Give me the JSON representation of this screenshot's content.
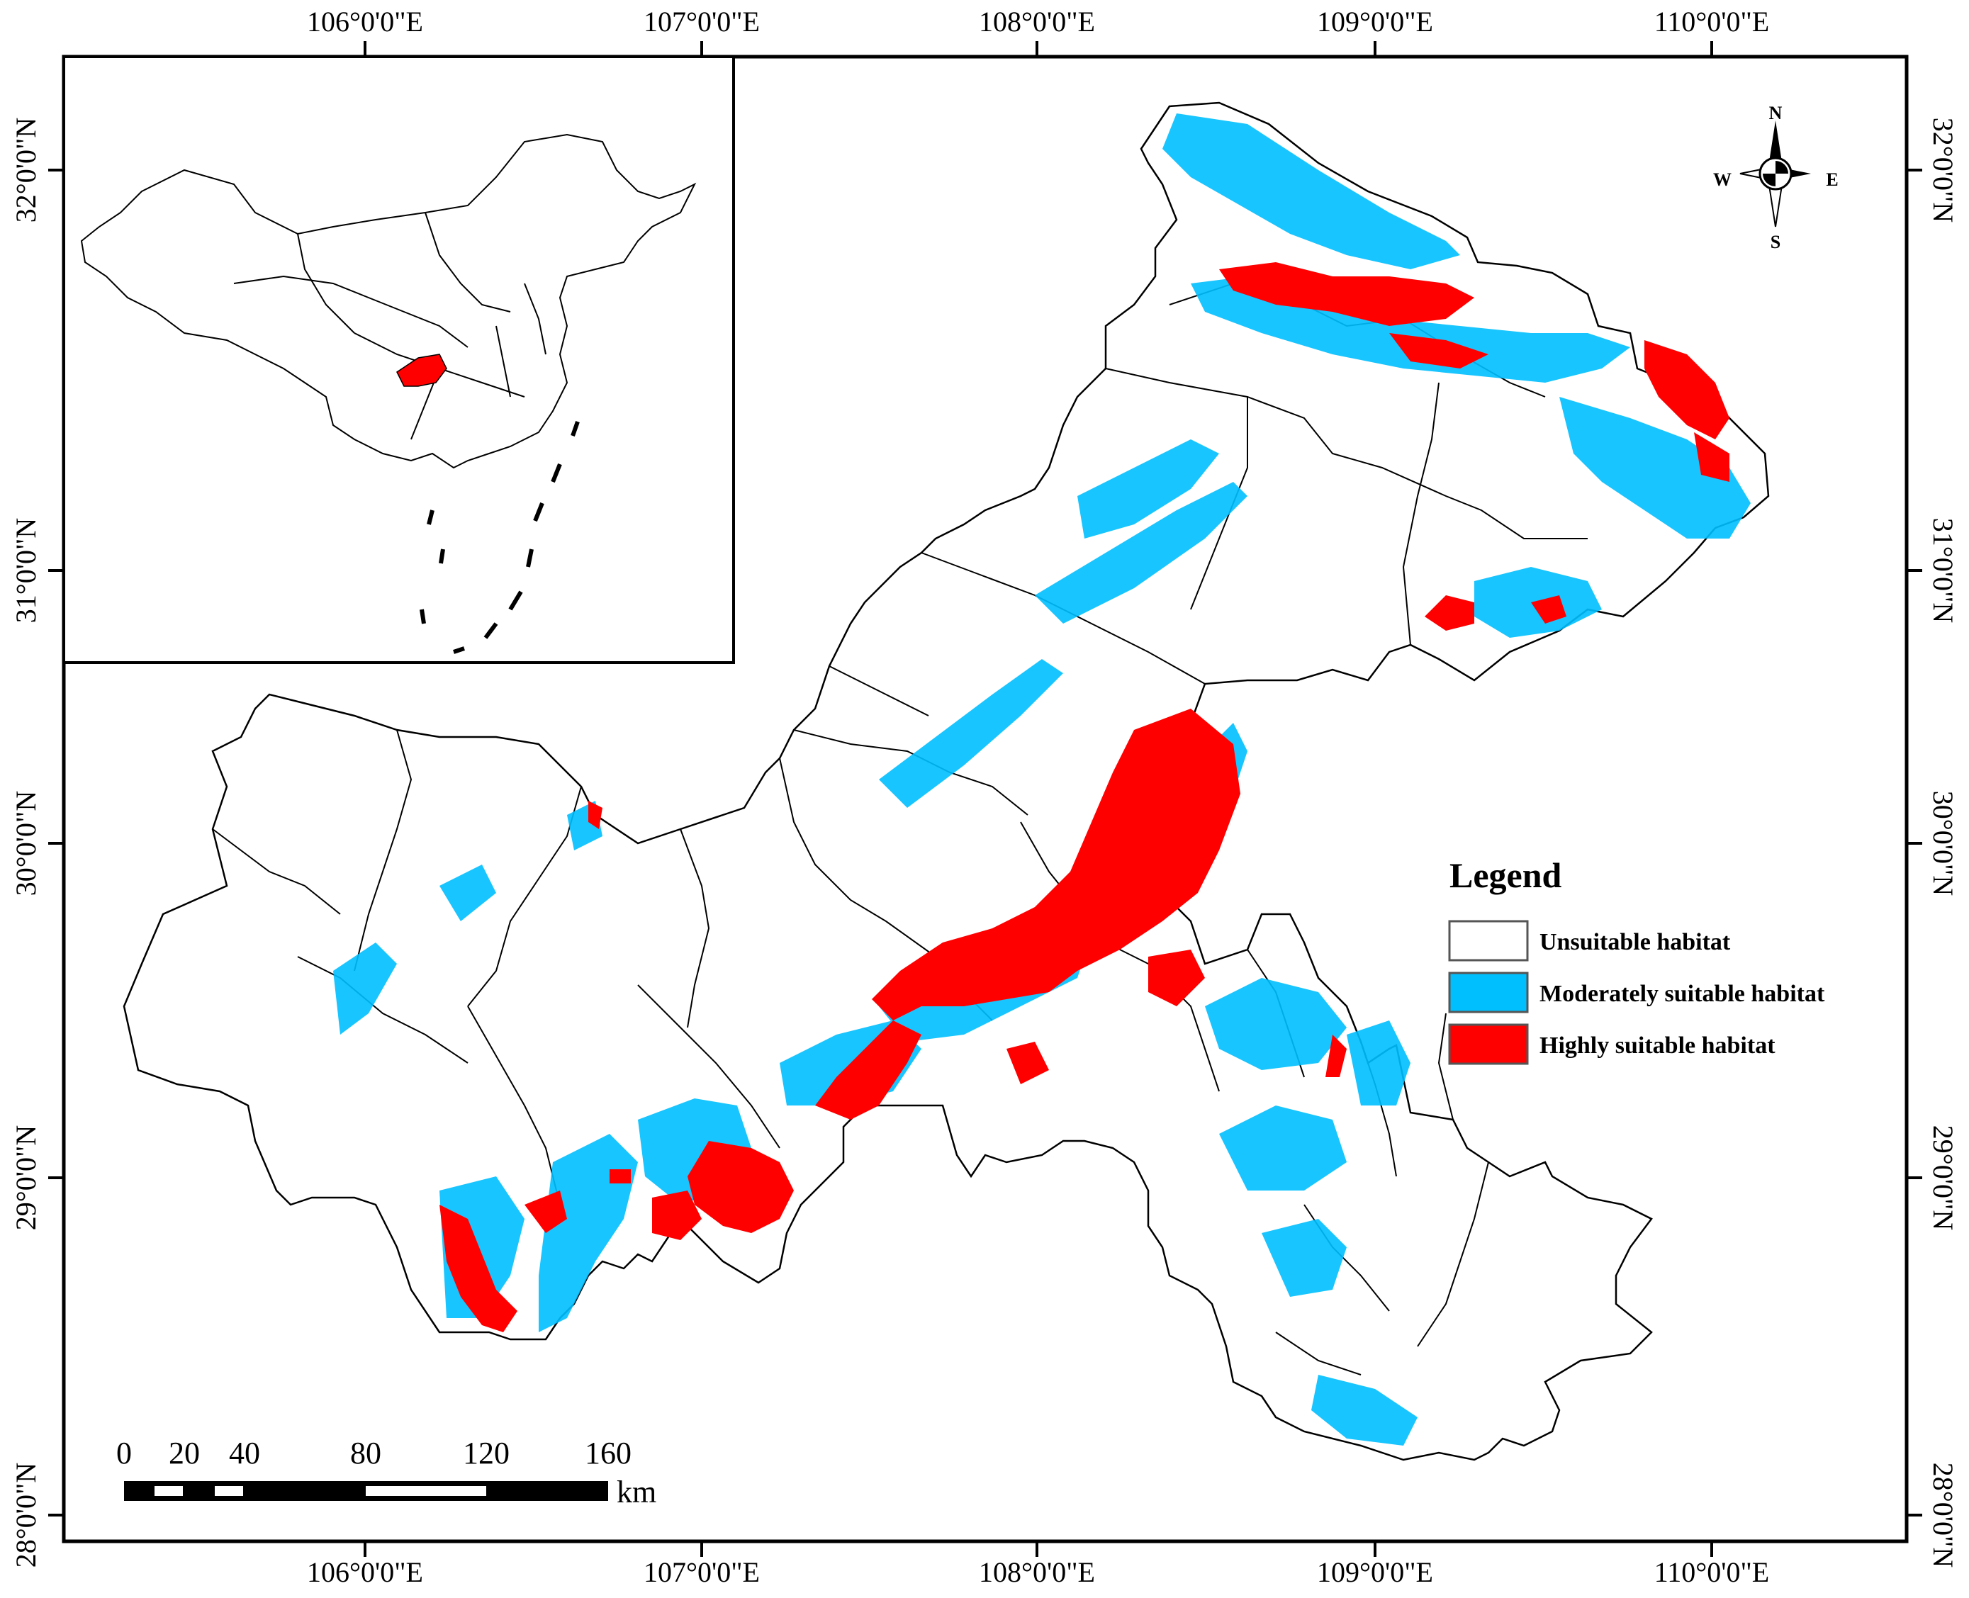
{
  "map": {
    "lon_labels": [
      "106°0'0\"E",
      "107°0'0\"E",
      "108°0'0\"E",
      "109°0'0\"E",
      "110°0'0\"E"
    ],
    "lat_labels": [
      "32°0'0\"N",
      "31°0'0\"N",
      "30°0'0\"N",
      "29°0'0\"N",
      "28°0'0\"N"
    ],
    "legend": {
      "title": "Legend",
      "items": [
        {
          "label": "Unsuitable habitat",
          "color": "#ffffff"
        },
        {
          "label": "Moderately suitable habitat",
          "color": "#00bfff"
        },
        {
          "label": "Highly suitable habitat",
          "color": "#ff0000"
        }
      ]
    },
    "north_arrow": {
      "n": "N",
      "s": "S",
      "e": "E",
      "w": "W",
      "icon": "compass-rose-icon"
    },
    "scale_bar": {
      "ticks": [
        "0",
        "20",
        "40",
        "80",
        "120",
        "160"
      ],
      "unit": "km"
    },
    "inset": {
      "description_icon": "china-outline-icon",
      "highlight_color": "#ff0000"
    }
  }
}
